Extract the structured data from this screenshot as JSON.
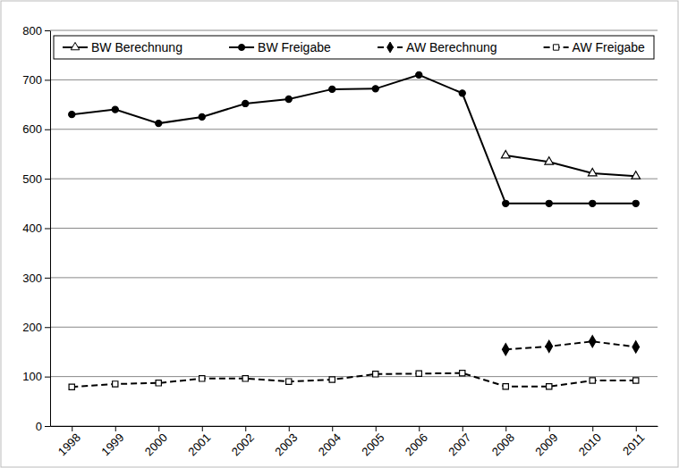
{
  "chart_data": {
    "type": "line",
    "categories": [
      "1998",
      "1999",
      "2000",
      "2001",
      "2002",
      "2003",
      "2004",
      "2005",
      "2006",
      "2007",
      "2008",
      "2009",
      "2010",
      "2011"
    ],
    "ylim": [
      0,
      800
    ],
    "yticks": [
      0,
      100,
      200,
      300,
      400,
      500,
      600,
      700,
      800
    ],
    "grid": true,
    "legend": "top",
    "series": [
      {
        "name": "BW Berechnung",
        "color": "#000000",
        "marker": "triangle-open",
        "line_style": "solid",
        "values": [
          null,
          null,
          null,
          null,
          null,
          null,
          null,
          null,
          null,
          null,
          547,
          534,
          511,
          505
        ]
      },
      {
        "name": "BW Freigabe",
        "color": "#000000",
        "marker": "circle",
        "line_style": "solid",
        "values": [
          630,
          640,
          612,
          625,
          652,
          661,
          681,
          682,
          710,
          673,
          450,
          450,
          450,
          450
        ]
      },
      {
        "name": "AW Berechnung",
        "color": "#000000",
        "marker": "diamond",
        "line_style": "dashed",
        "values": [
          null,
          null,
          null,
          null,
          null,
          null,
          null,
          null,
          null,
          null,
          155,
          161,
          171,
          160
        ]
      },
      {
        "name": "AW Freigabe",
        "color": "#000000",
        "marker": "square-open",
        "line_style": "dashed",
        "values": [
          79,
          85,
          87,
          96,
          96,
          90,
          94,
          105,
          106,
          107,
          80,
          80,
          92,
          92
        ]
      }
    ]
  }
}
